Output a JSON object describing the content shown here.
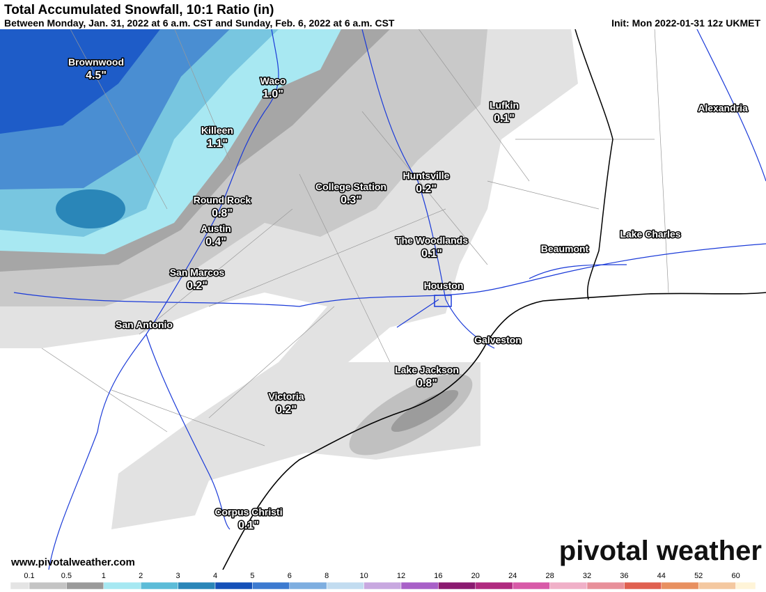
{
  "header": {
    "title": "Total Accumulated Snowfall, 10:1 Ratio (in)",
    "subtitle": "Between Monday, Jan. 31, 2022 at 6 a.m. CST and Sunday, Feb. 6, 2022 at 6 a.m. CST",
    "init": "Init: Mon 2022-01-31 12z UKMET"
  },
  "cities": [
    {
      "name": "Brownwood",
      "value": "4.5\""
    },
    {
      "name": "Waco",
      "value": "1.0\""
    },
    {
      "name": "Killeen",
      "value": "1.1\""
    },
    {
      "name": "Round Rock",
      "value": "0.8\""
    },
    {
      "name": "Austin",
      "value": "0.4\""
    },
    {
      "name": "San Marcos",
      "value": "0.2\""
    },
    {
      "name": "San Antonio"
    },
    {
      "name": "College Station",
      "value": "0.3\""
    },
    {
      "name": "Huntsville",
      "value": "0.2\""
    },
    {
      "name": "Lufkin",
      "value": "0.1\""
    },
    {
      "name": "The Woodlands",
      "value": "0.1\""
    },
    {
      "name": "Houston"
    },
    {
      "name": "Galveston"
    },
    {
      "name": "Lake Jackson",
      "value": "0.8\""
    },
    {
      "name": "Victoria",
      "value": "0.2\""
    },
    {
      "name": "Corpus Christi",
      "value": "0.1\""
    },
    {
      "name": "Beaumont"
    },
    {
      "name": "Lake Charles"
    },
    {
      "name": "Alexandria"
    }
  ],
  "legend": {
    "labels": [
      0.1,
      0.5,
      1,
      2,
      3,
      4,
      5,
      6,
      8,
      10,
      12,
      16,
      20,
      24,
      28,
      32,
      36,
      44,
      52,
      60
    ],
    "colors": [
      "#e4e4e4",
      "#c4c4c4",
      "#9a9a9a",
      "#a6e8f2",
      "#5cbcd8",
      "#2a86b8",
      "#1450b8",
      "#3c7ad0",
      "#7eaee0",
      "#c2dcf0",
      "#c8a8e0",
      "#a860c8",
      "#8a1a70",
      "#b02a80",
      "#d85aa8",
      "#f0b0c8",
      "#e8909a",
      "#e06050",
      "#e89060",
      "#f4c8a0",
      "#fff4d8"
    ]
  },
  "footer": {
    "url": "www.pivotalweather.com",
    "brand": "pivotal weather"
  }
}
